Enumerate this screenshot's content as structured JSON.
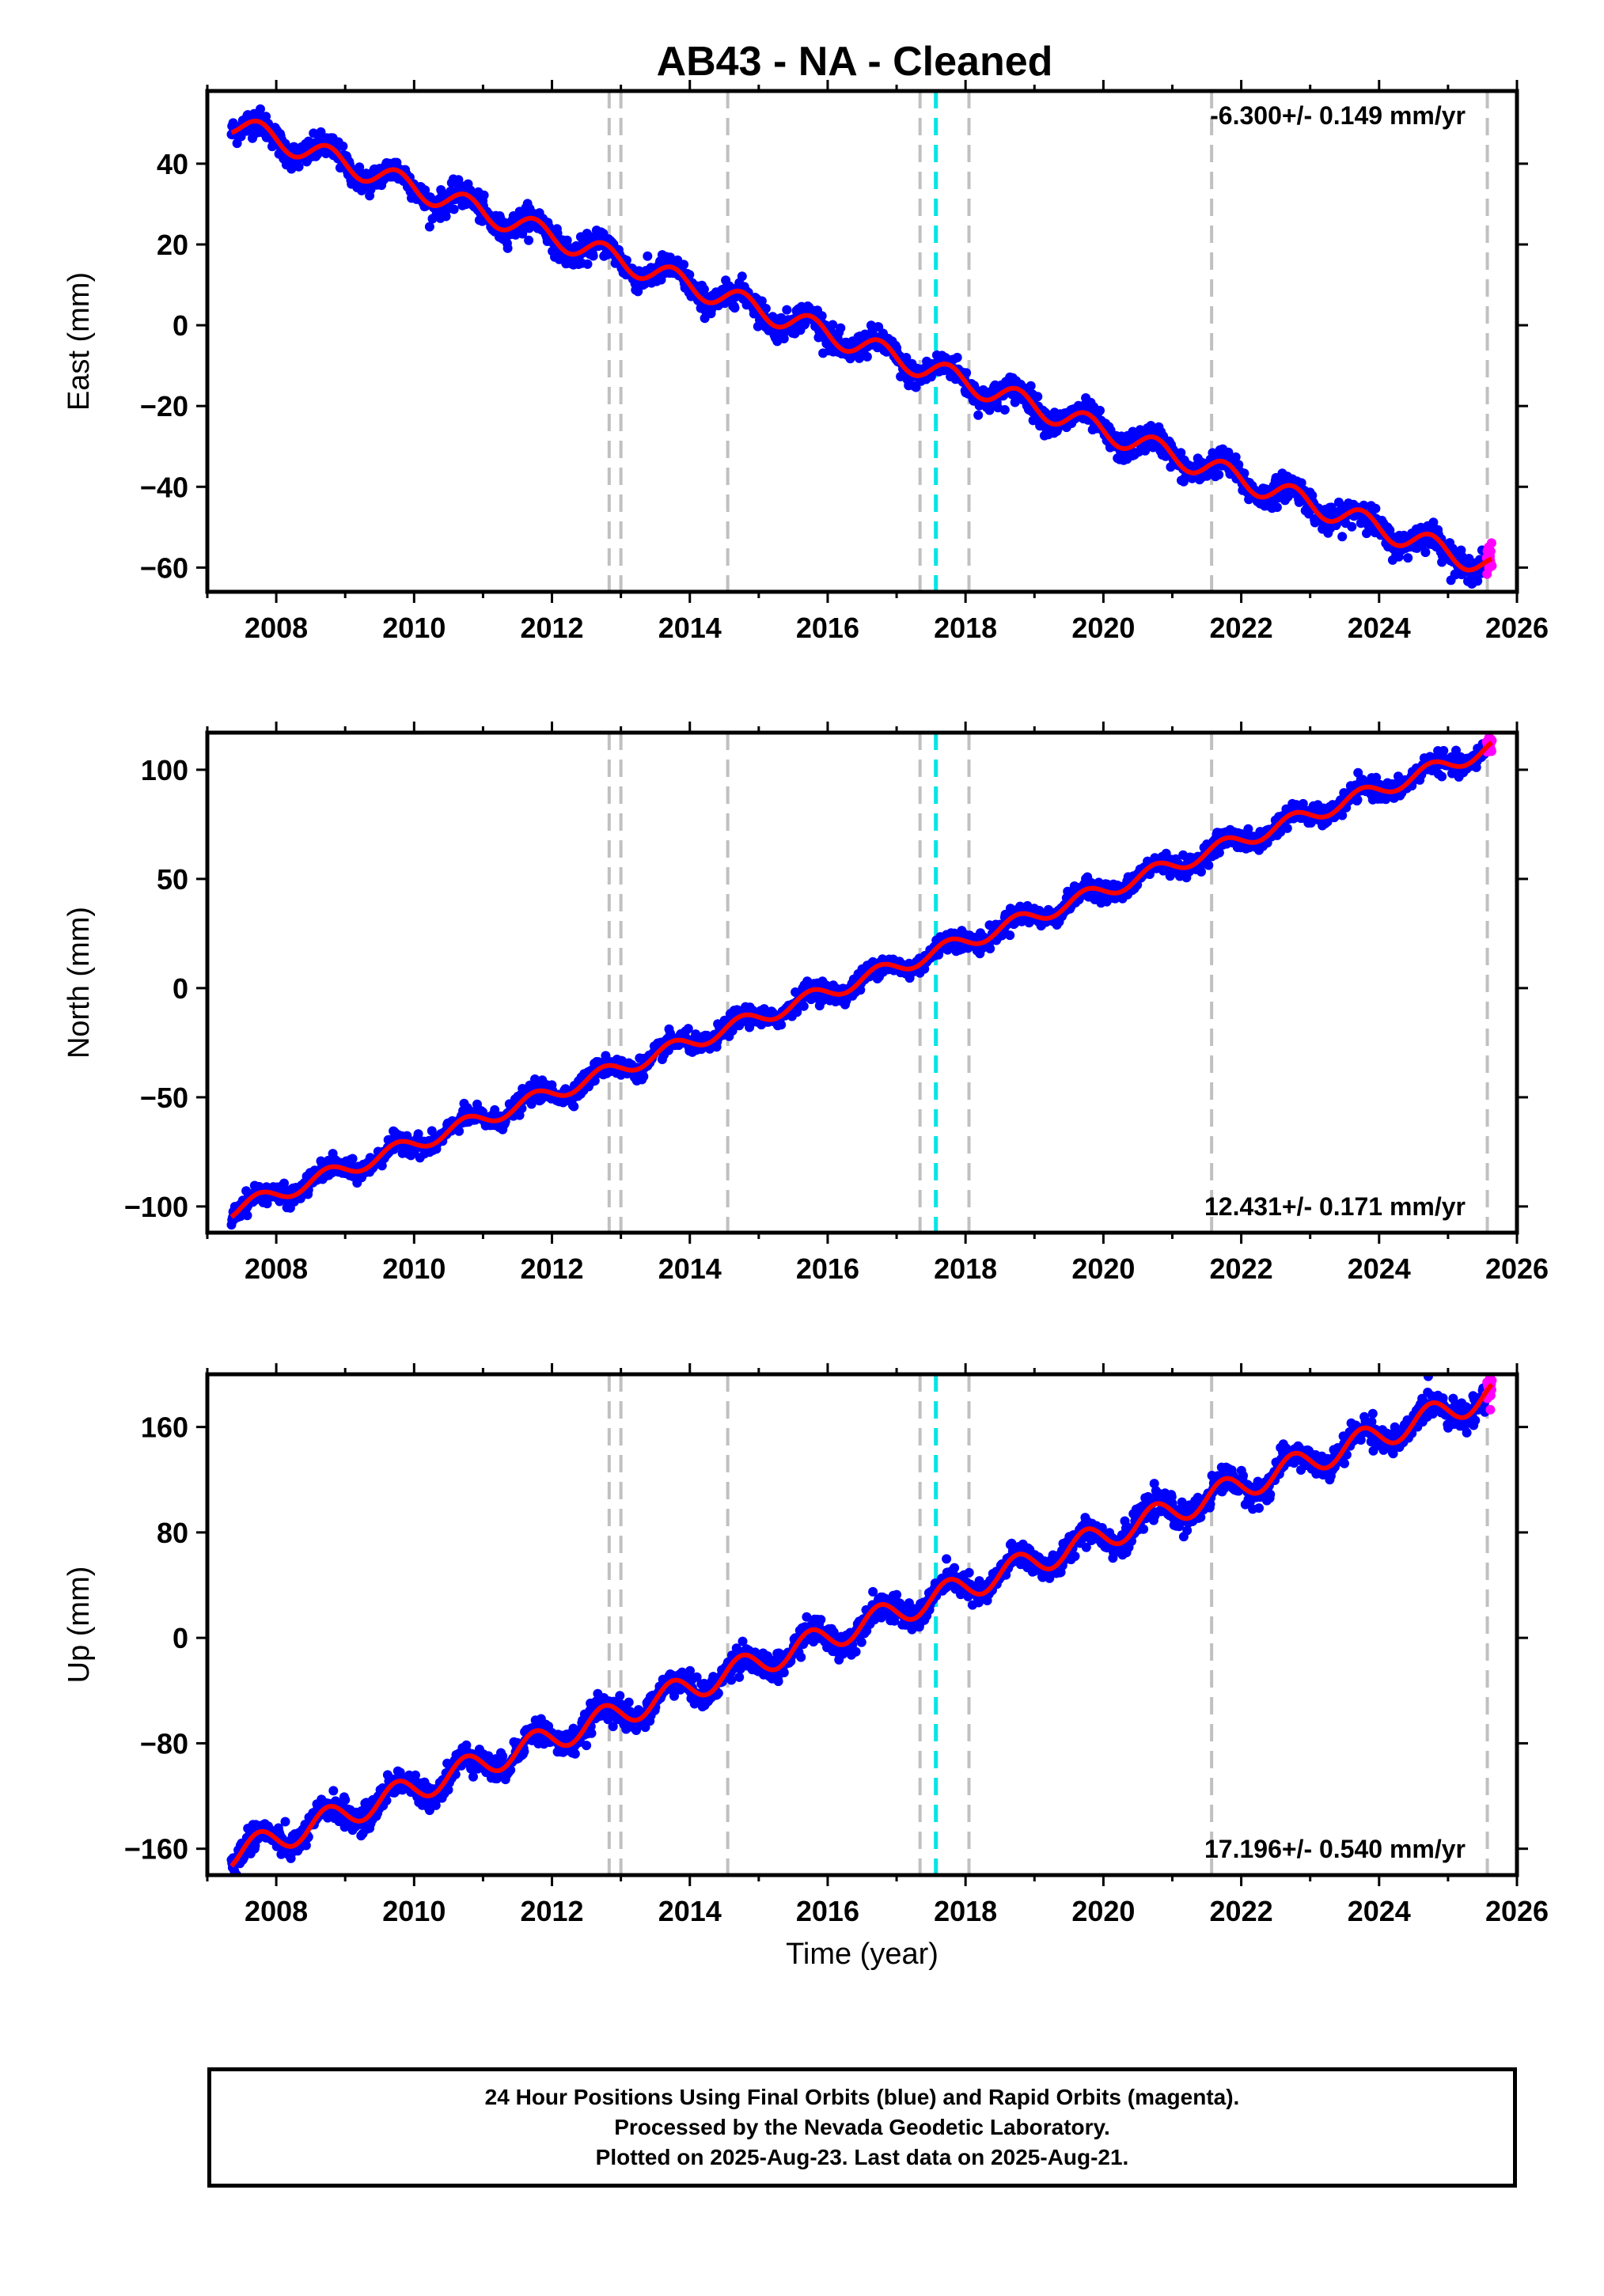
{
  "title": "AB43  - NA - Cleaned",
  "colors": {
    "final_orbits": "#0000ff",
    "rapid_orbits": "#ff00ff",
    "model": "#ff0000",
    "event_lines": "#c0c0c0",
    "highlight_line": "#00e5e5",
    "frame": "#000000"
  },
  "chart_data": [
    {
      "type": "scatter",
      "name": "east",
      "ylabel": "East (mm)",
      "xlabel": "",
      "xlim": [
        2007.0,
        2026.0
      ],
      "ylim": [
        -66,
        58
      ],
      "xticks": [
        2008,
        2010,
        2012,
        2014,
        2016,
        2018,
        2020,
        2022,
        2024,
        2026
      ],
      "yticks": [
        -60,
        -40,
        -20,
        0,
        20,
        40
      ],
      "ytick_labels": [
        "−60",
        "−40",
        "−20",
        "0",
        "20",
        "40"
      ],
      "rate_label": "-6.300+/- 0.149 mm/yr",
      "rate_position": "top-right",
      "rate": -6.3,
      "offset": 2,
      "annual_amp": 2.8,
      "noise": 1.6,
      "jumps": [],
      "start_value": 50,
      "end_value": -60
    },
    {
      "type": "scatter",
      "name": "north",
      "ylabel": "North (mm)",
      "xlabel": "",
      "xlim": [
        2007.0,
        2026.0
      ],
      "ylim": [
        -112,
        117
      ],
      "xticks": [
        2008,
        2010,
        2012,
        2014,
        2016,
        2018,
        2020,
        2022,
        2024,
        2026
      ],
      "yticks": [
        -100,
        -50,
        0,
        50,
        100
      ],
      "ytick_labels": [
        "−100",
        "−50",
        "0",
        "50",
        "100"
      ],
      "rate_label": "12.431+/- 0.171 mm/yr",
      "rate_position": "bottom-right",
      "rate": 12.431,
      "offset": 5,
      "annual_amp": 3.5,
      "noise": 2.2,
      "jumps": [],
      "start_value": -102,
      "end_value": 110
    },
    {
      "type": "scatter",
      "name": "up",
      "ylabel": "Up (mm)",
      "xlabel": "Time (year)",
      "xlim": [
        2007.0,
        2026.0
      ],
      "ylim": [
        -180,
        200
      ],
      "xticks": [
        2008,
        2010,
        2012,
        2014,
        2016,
        2018,
        2020,
        2022,
        2024,
        2026
      ],
      "yticks": [
        -160,
        -80,
        0,
        80,
        160
      ],
      "ytick_labels": [
        "−160",
        "−80",
        "0",
        "80",
        "160"
      ],
      "rate_label": "17.196+/- 0.540 mm/yr",
      "rate_position": "bottom-right",
      "rate": 17.196,
      "offset": -5,
      "annual_amp": 10,
      "noise": 5,
      "jumps": [],
      "start_value": -165,
      "end_value": 185
    }
  ],
  "data_span": [
    2007.35,
    2025.64
  ],
  "rapid_span": [
    2025.56,
    2025.64
  ],
  "event_lines": [
    2012.83,
    2013.0,
    2014.55,
    2017.34,
    2018.05,
    2021.57,
    2025.57
  ],
  "highlight_lines": [
    2017.57
  ],
  "footer": {
    "line1": "24 Hour Positions Using Final Orbits (blue) and Rapid Orbits (magenta).",
    "line2": "Processed by the Nevada Geodetic Laboratory.",
    "line3": "Plotted on 2025-Aug-23. Last data on 2025-Aug-21."
  }
}
